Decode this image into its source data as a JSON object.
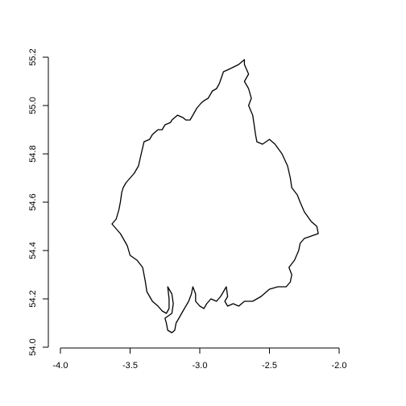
{
  "chart_data": {
    "type": "map-outline",
    "title": "",
    "xlabel": "",
    "ylabel": "",
    "xlim": [
      -4.0,
      -2.0
    ],
    "ylim": [
      54.0,
      55.2
    ],
    "x_ticks": [
      -4.0,
      -3.5,
      -3.0,
      -2.5,
      -2.0
    ],
    "x_tick_labels": [
      "-4.0",
      "-3.5",
      "-3.0",
      "-2.5",
      "-2.0"
    ],
    "y_ticks": [
      54.0,
      54.2,
      54.4,
      54.6,
      54.8,
      55.0,
      55.2
    ],
    "y_tick_labels": [
      "54.0",
      "54.2",
      "54.4",
      "54.6",
      "54.8",
      "55.0",
      "55.2"
    ],
    "grid": false,
    "outline": [
      [
        -2.68,
        55.19
      ],
      [
        -2.72,
        55.17
      ],
      [
        -2.79,
        55.15
      ],
      [
        -2.83,
        55.14
      ],
      [
        -2.86,
        55.09
      ],
      [
        -2.88,
        55.07
      ],
      [
        -2.91,
        55.06
      ],
      [
        -2.94,
        55.03
      ],
      [
        -2.97,
        55.02
      ],
      [
        -2.99,
        55.01
      ],
      [
        -3.02,
        54.99
      ],
      [
        -3.03,
        54.98
      ],
      [
        -3.05,
        54.96
      ],
      [
        -3.07,
        54.94
      ],
      [
        -3.1,
        54.94
      ],
      [
        -3.12,
        54.95
      ],
      [
        -3.16,
        54.96
      ],
      [
        -3.2,
        54.94
      ],
      [
        -3.21,
        54.93
      ],
      [
        -3.25,
        54.92
      ],
      [
        -3.27,
        54.9
      ],
      [
        -3.3,
        54.9
      ],
      [
        -3.34,
        54.88
      ],
      [
        -3.36,
        54.86
      ],
      [
        -3.4,
        54.85
      ],
      [
        -3.42,
        54.8
      ],
      [
        -3.44,
        54.75
      ],
      [
        -3.47,
        54.72
      ],
      [
        -3.5,
        54.7
      ],
      [
        -3.53,
        54.68
      ],
      [
        -3.55,
        54.66
      ],
      [
        -3.56,
        54.64
      ],
      [
        -3.57,
        54.6
      ],
      [
        -3.58,
        54.57
      ],
      [
        -3.6,
        54.53
      ],
      [
        -3.63,
        54.51
      ],
      [
        -3.6,
        54.49
      ],
      [
        -3.57,
        54.47
      ],
      [
        -3.55,
        54.45
      ],
      [
        -3.52,
        54.42
      ],
      [
        -3.5,
        54.38
      ],
      [
        -3.45,
        54.36
      ],
      [
        -3.41,
        54.33
      ],
      [
        -3.4,
        54.3
      ],
      [
        -3.39,
        54.27
      ],
      [
        -3.38,
        54.23
      ],
      [
        -3.36,
        54.21
      ],
      [
        -3.34,
        54.19
      ],
      [
        -3.3,
        54.17
      ],
      [
        -3.27,
        54.15
      ],
      [
        -3.24,
        54.14
      ],
      [
        -3.22,
        54.16
      ],
      [
        -3.22,
        54.2
      ],
      [
        -3.23,
        54.25
      ],
      [
        -3.2,
        54.22
      ],
      [
        -3.19,
        54.18
      ],
      [
        -3.2,
        54.14
      ],
      [
        -3.25,
        54.12
      ],
      [
        -3.24,
        54.1
      ],
      [
        -3.23,
        54.07
      ],
      [
        -3.2,
        54.06
      ],
      [
        -3.18,
        54.07
      ],
      [
        -3.17,
        54.1
      ],
      [
        -3.15,
        54.12
      ],
      [
        -3.12,
        54.15
      ],
      [
        -3.08,
        54.19
      ],
      [
        -3.06,
        54.22
      ],
      [
        -3.05,
        54.25
      ],
      [
        -3.03,
        54.22
      ],
      [
        -3.03,
        54.19
      ],
      [
        -3.0,
        54.17
      ],
      [
        -2.97,
        54.16
      ],
      [
        -2.95,
        54.18
      ],
      [
        -2.92,
        54.2
      ],
      [
        -2.88,
        54.19
      ],
      [
        -2.85,
        54.21
      ],
      [
        -2.81,
        54.25
      ],
      [
        -2.8,
        54.21
      ],
      [
        -2.82,
        54.19
      ],
      [
        -2.8,
        54.17
      ],
      [
        -2.76,
        54.18
      ],
      [
        -2.72,
        54.17
      ],
      [
        -2.68,
        54.19
      ],
      [
        -2.62,
        54.19
      ],
      [
        -2.56,
        54.21
      ],
      [
        -2.5,
        54.24
      ],
      [
        -2.44,
        54.25
      ],
      [
        -2.38,
        54.25
      ],
      [
        -2.35,
        54.27
      ],
      [
        -2.34,
        54.3
      ],
      [
        -2.36,
        54.33
      ],
      [
        -2.32,
        54.36
      ],
      [
        -2.29,
        54.4
      ],
      [
        -2.28,
        54.43
      ],
      [
        -2.25,
        54.45
      ],
      [
        -2.2,
        54.46
      ],
      [
        -2.15,
        54.47
      ],
      [
        -2.16,
        54.5
      ],
      [
        -2.2,
        54.52
      ],
      [
        -2.25,
        54.56
      ],
      [
        -2.28,
        54.6
      ],
      [
        -2.3,
        54.63
      ],
      [
        -2.34,
        54.66
      ],
      [
        -2.35,
        54.7
      ],
      [
        -2.37,
        54.75
      ],
      [
        -2.41,
        54.8
      ],
      [
        -2.46,
        54.84
      ],
      [
        -2.5,
        54.86
      ],
      [
        -2.55,
        54.84
      ],
      [
        -2.59,
        54.85
      ],
      [
        -2.6,
        54.88
      ],
      [
        -2.61,
        54.92
      ],
      [
        -2.62,
        54.96
      ],
      [
        -2.65,
        55.0
      ],
      [
        -2.63,
        55.03
      ],
      [
        -2.65,
        55.07
      ],
      [
        -2.68,
        55.1
      ],
      [
        -2.65,
        55.13
      ],
      [
        -2.68,
        55.17
      ],
      [
        -2.68,
        55.19
      ]
    ]
  }
}
